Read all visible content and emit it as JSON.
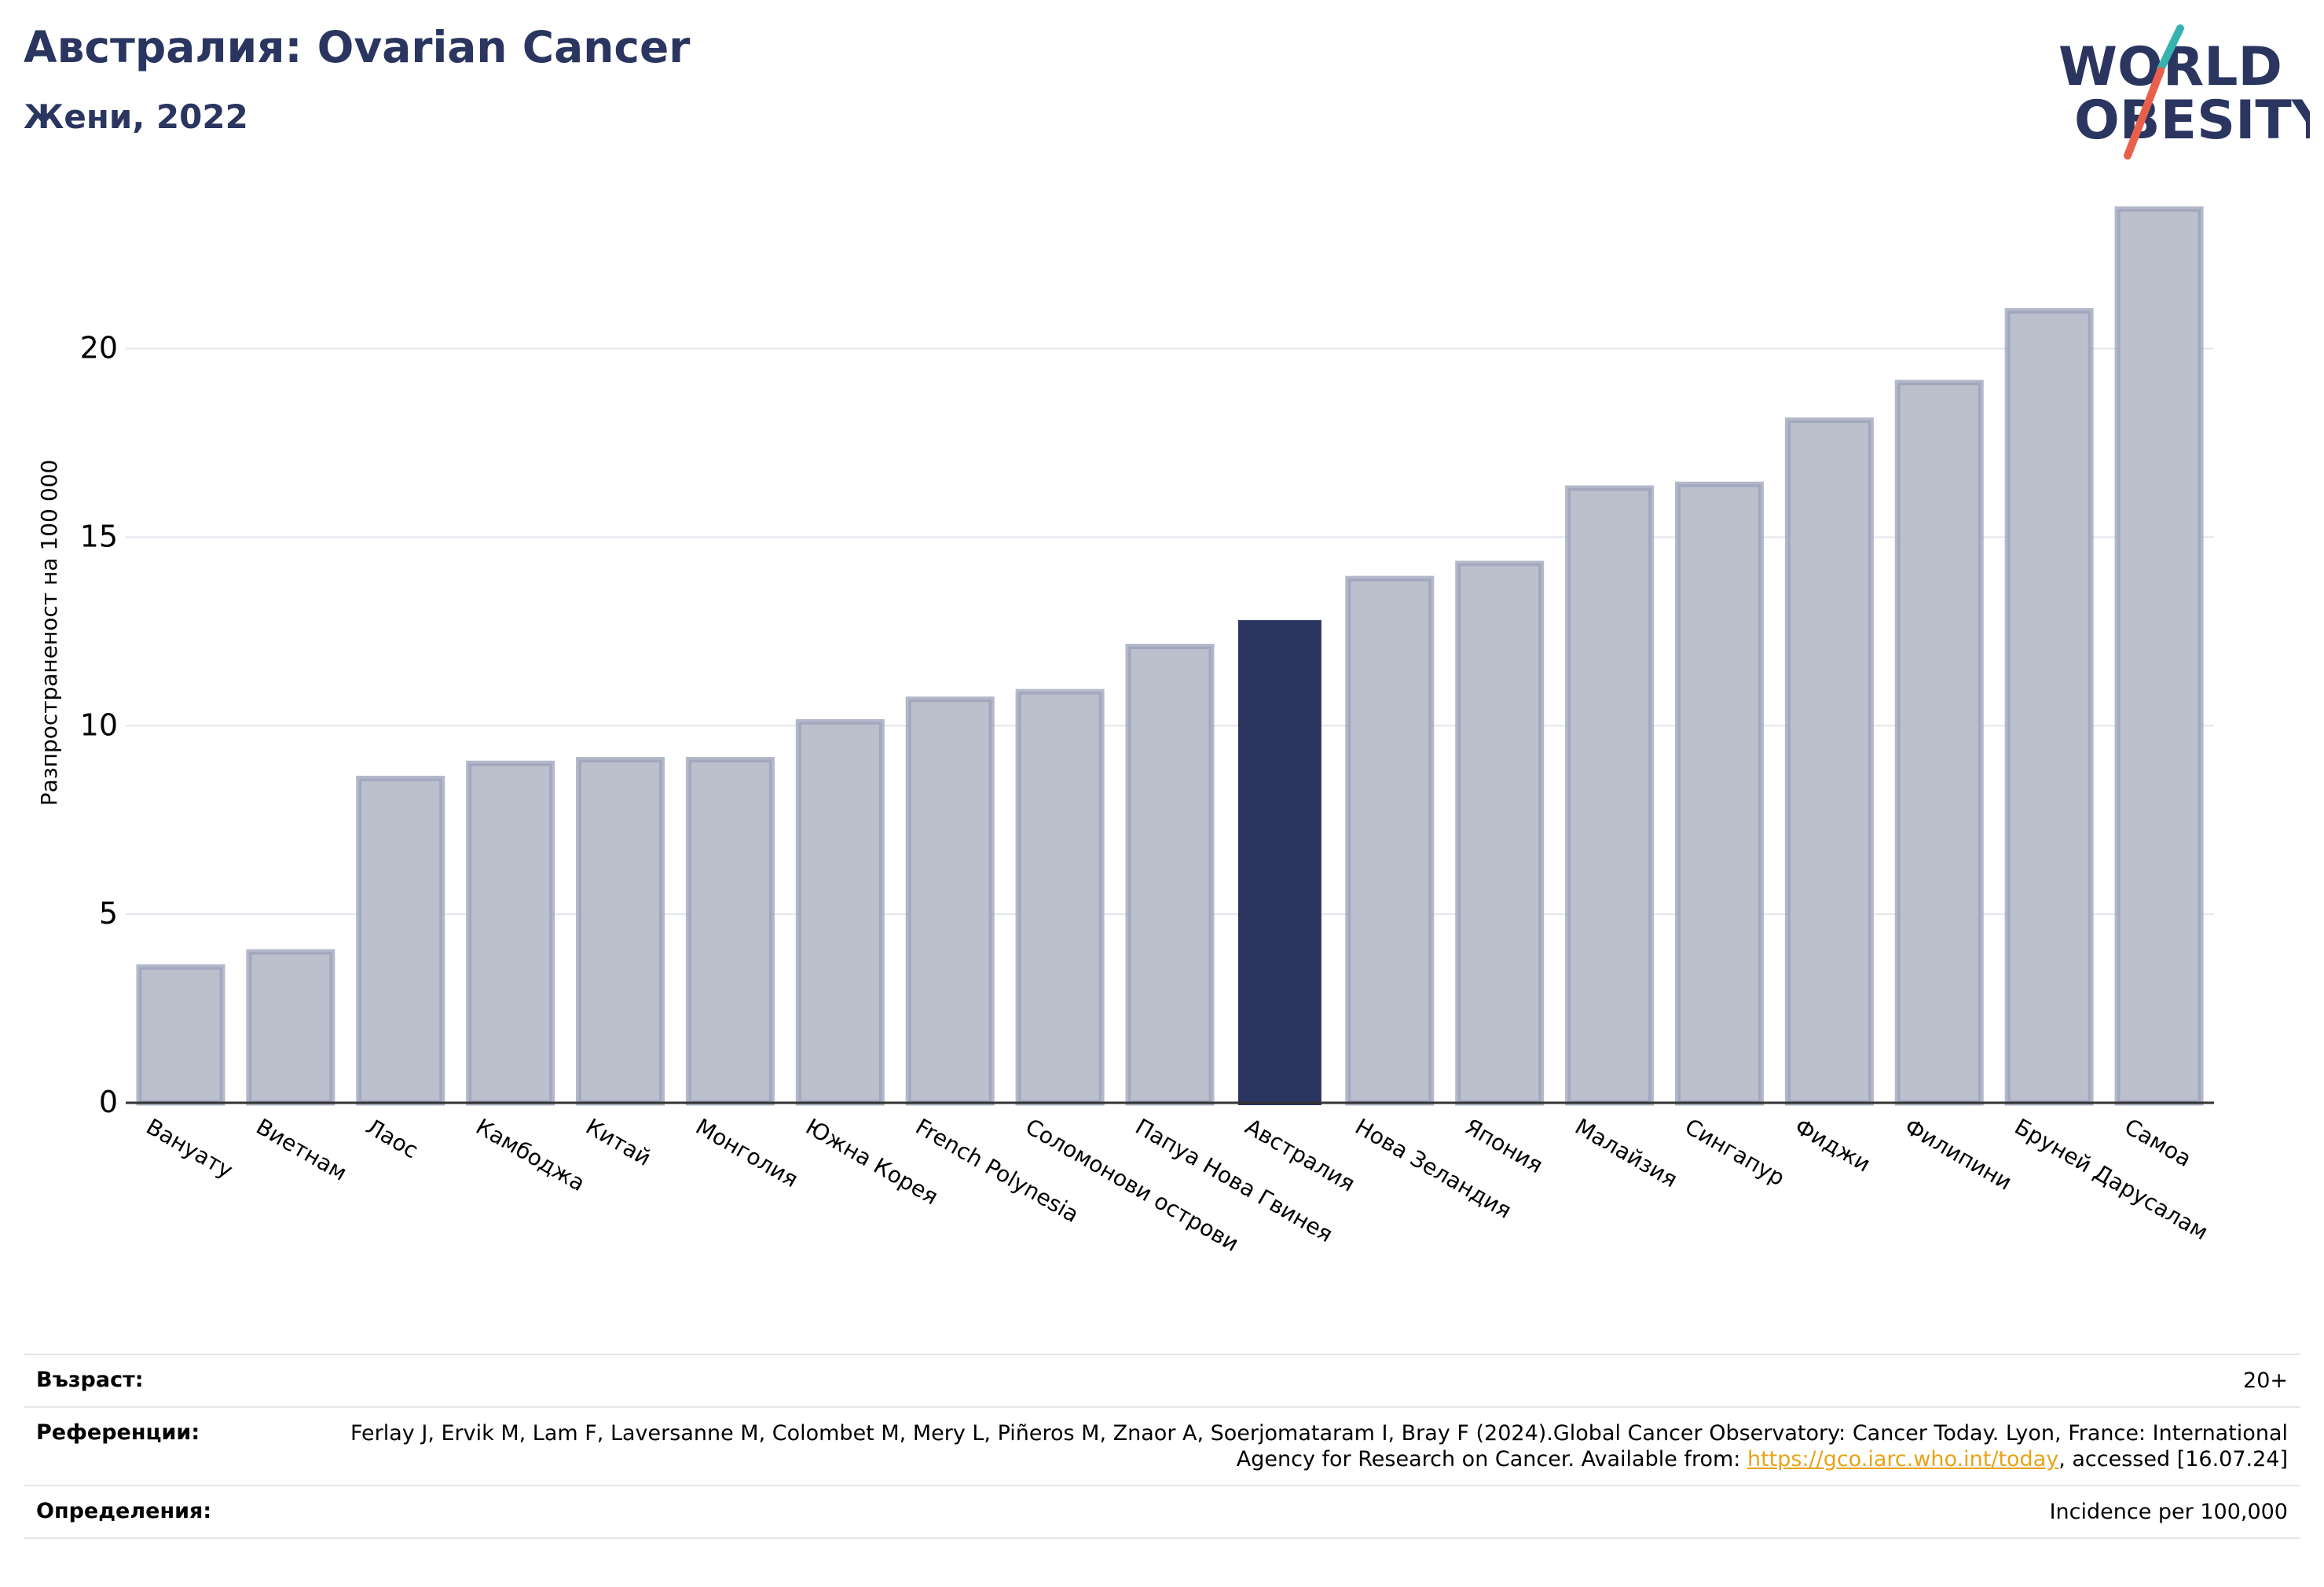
{
  "header": {
    "title": "Австралия: Ovarian Cancer",
    "subtitle": "Жени, 2022"
  },
  "logo": {
    "line1": "WORLD",
    "line2": "OBESITY",
    "colors": [
      "#2a3560",
      "#36b3b0",
      "#e8604c"
    ]
  },
  "chart_data": {
    "type": "bar",
    "title": "",
    "xlabel": "",
    "ylabel": "Разпространеност  на 100 000",
    "ylim": [
      0,
      24
    ],
    "yticks": [
      0,
      5,
      10,
      15,
      20
    ],
    "grid": true,
    "highlight_category": "Австралия",
    "colors": {
      "bar": "#bcc0cd",
      "bar_edge": "#9aa0b8",
      "highlight": "#2a3560"
    },
    "categories": [
      "Вануату",
      "Виетнам",
      "Лаос",
      "Камбоджа",
      "Китай",
      "Монголия",
      "Южна Корея",
      "French Polynesia",
      "Соломонови острови",
      "Папуа Нова Гвинея",
      "Австралия",
      "Нова Зеландия",
      "Япония",
      "Малайзия",
      "Сингапур",
      "Фиджи",
      "Филипини",
      "Бруней Даруса­лам",
      "Самоа"
    ],
    "values": [
      3.6,
      4.0,
      8.6,
      9.0,
      9.1,
      9.1,
      10.1,
      10.7,
      10.9,
      12.1,
      12.8,
      13.9,
      14.3,
      16.3,
      16.4,
      18.1,
      19.1,
      21.0,
      23.7
    ]
  },
  "footer": {
    "age_label": "Възраст:",
    "age_value": "20+",
    "ref_label": "Референции:",
    "ref_text_1": "Ferlay J, Ervik M, Lam F, Laversanne M, Colombet M, Mery L, Piñeros M, Znaor A, Soerjomataram I, Bray F (2024).Global Cancer Observatory: Cancer Today. Lyon, France: International Agency for Research on Cancer. Available from: ",
    "ref_link": "https://gco.iarc.who.int/today",
    "ref_text_2": ", accessed [16.07.24]",
    "def_label": "Определения:",
    "def_value": "Incidence per 100,000"
  }
}
